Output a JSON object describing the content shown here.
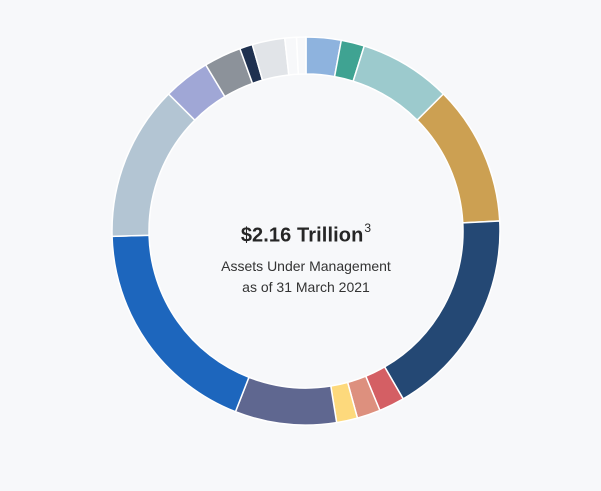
{
  "center": {
    "amount": "$2.16 Trillion",
    "footnote": "3",
    "caption": "Assets Under Management as of 31 March 2021"
  },
  "chart_data": {
    "type": "pie",
    "variant": "donut",
    "title": "",
    "categories": [
      "",
      "",
      "",
      "",
      "",
      "",
      "",
      "",
      "",
      "",
      "",
      "",
      "",
      "",
      "",
      "",
      ""
    ],
    "values": [
      3.0,
      2.0,
      7.9,
      12.0,
      18.0,
      2.2,
      2.0,
      1.8,
      8.7,
      19.2,
      13.3,
      4.0,
      3.2,
      1.1,
      2.8,
      1.0,
      0.8
    ],
    "colors": [
      "#8eb3de",
      "#3fa392",
      "#9ccacd",
      "#cca052",
      "#244874",
      "#d45f64",
      "#dd907e",
      "#fdd97c",
      "#5f6790",
      "#1d66bd",
      "#b3c5d3",
      "#a0a7d6",
      "#8c929a",
      "#1f3150",
      "#e1e4e8",
      "#f7f8fa",
      "#f7f8fa"
    ],
    "legend": "none"
  }
}
